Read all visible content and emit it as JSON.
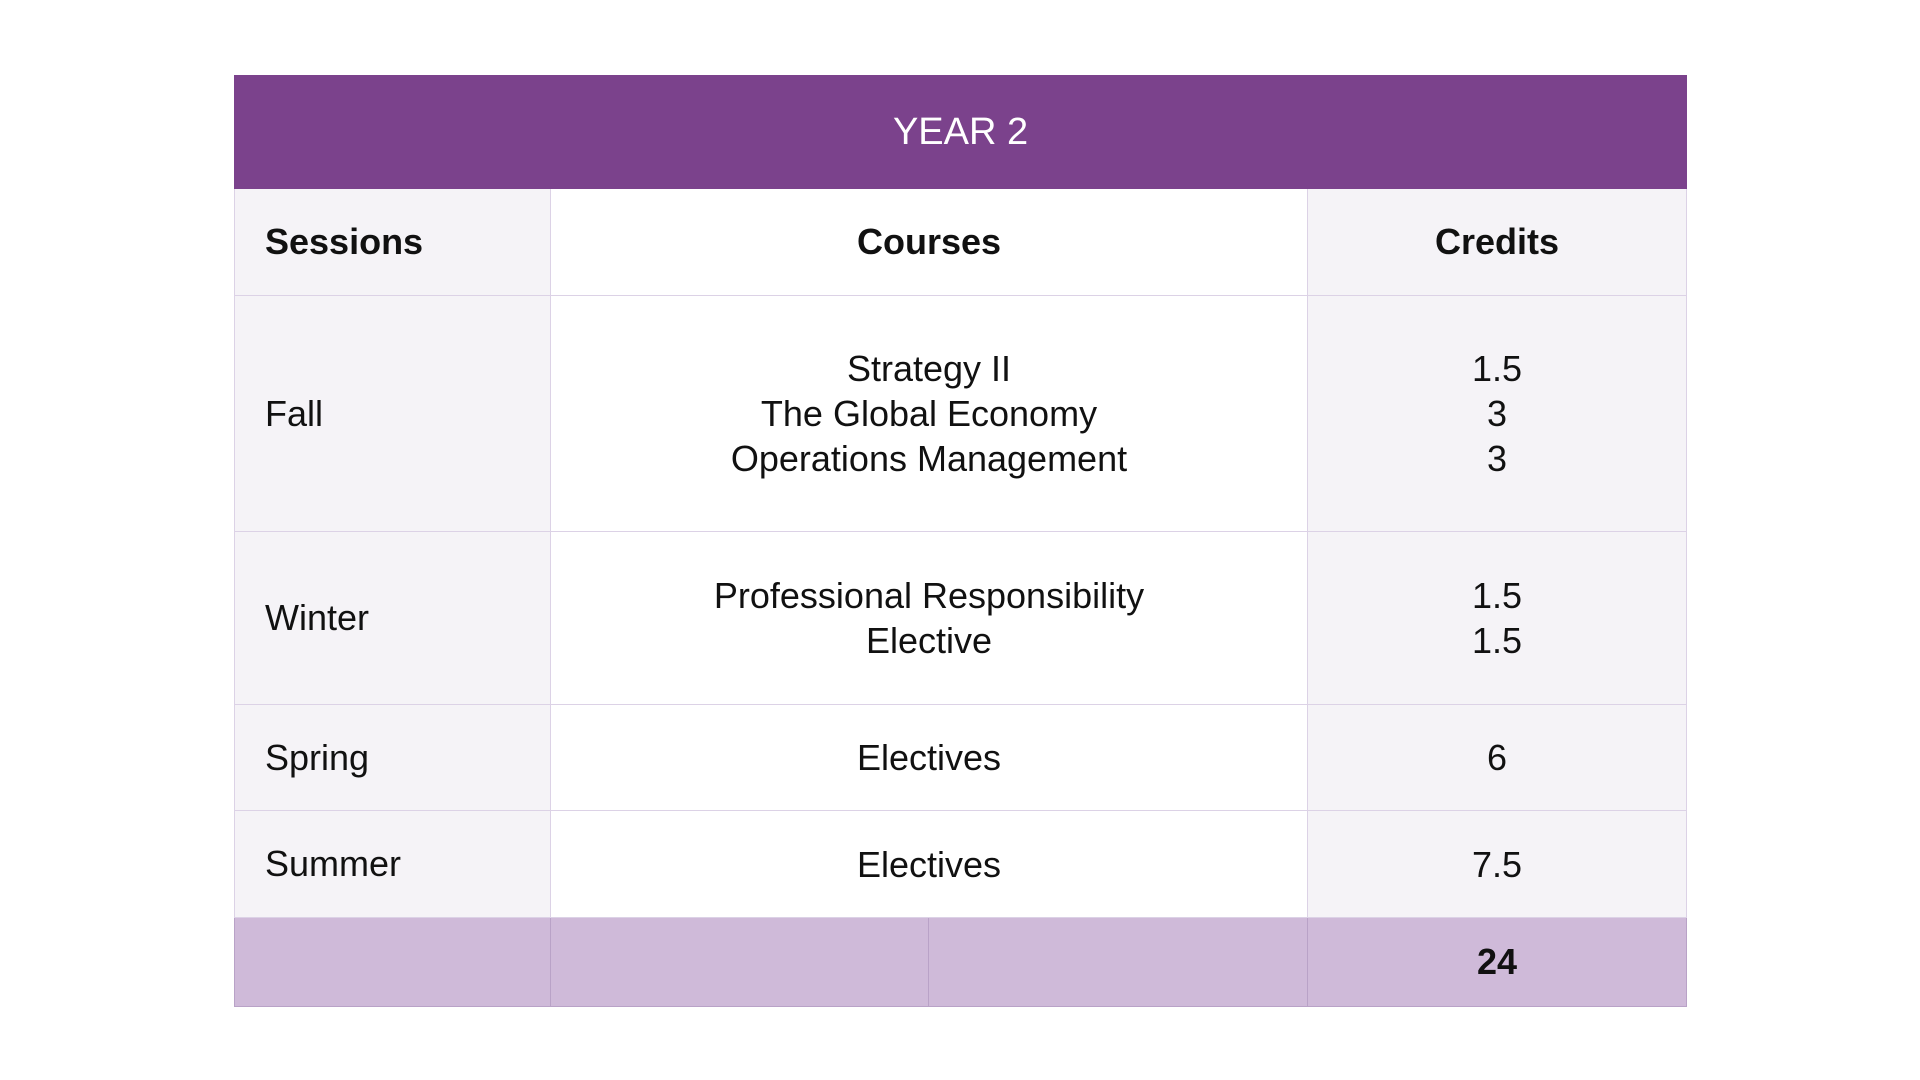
{
  "title": "YEAR 2",
  "headers": {
    "sessions": "Sessions",
    "courses": "Courses",
    "credits": "Credits"
  },
  "rows": [
    {
      "session": "Fall",
      "courses": [
        "Strategy II",
        "The Global Economy",
        "Operations Management"
      ],
      "credits": [
        "1.5",
        "3",
        "3"
      ]
    },
    {
      "session": "Winter",
      "courses": [
        "Professional Responsibility",
        "Elective"
      ],
      "credits": [
        "1.5",
        "1.5"
      ]
    },
    {
      "session": "Spring",
      "courses": [
        "Electives"
      ],
      "credits": [
        "6"
      ]
    },
    {
      "session": "Summer",
      "courses": [
        "Electives"
      ],
      "credits": [
        "7.5"
      ]
    }
  ],
  "total": "24",
  "colors": {
    "header": "#7b428c",
    "footer": "#cfbad9",
    "stripe": "#f5f3f7"
  }
}
